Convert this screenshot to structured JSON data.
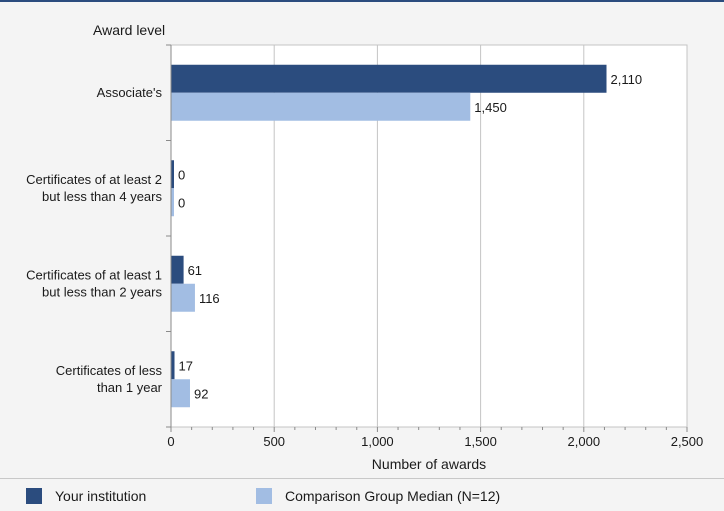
{
  "chart_data": {
    "type": "bar",
    "orientation": "horizontal",
    "category_axis_title": "Award level",
    "xlabel": "Number of awards",
    "xlim": [
      0,
      2500
    ],
    "x_ticks": [
      0,
      500,
      1000,
      1500,
      2000,
      2500
    ],
    "x_tick_labels": [
      "0",
      "500",
      "1,000",
      "1,500",
      "2,000",
      "2,500"
    ],
    "grid": true,
    "categories": [
      [
        "Associate's"
      ],
      [
        "Certificates of at least 2",
        "but less than 4 years"
      ],
      [
        "Certificates of at least 1",
        "but  less than 2 years"
      ],
      [
        "Certificates of less",
        "than 1 year"
      ]
    ],
    "series": [
      {
        "name": "Your institution",
        "color": "#2b4c7e",
        "values": [
          2110,
          0,
          61,
          17
        ],
        "labels": [
          "2,110",
          "0",
          "61",
          "17"
        ]
      },
      {
        "name": "Comparison Group Median (N=12)",
        "color": "#a2bde3",
        "values": [
          1450,
          0,
          116,
          92
        ],
        "labels": [
          "1,450",
          "0",
          "116",
          "92"
        ]
      }
    ],
    "legend_position": "bottom"
  }
}
